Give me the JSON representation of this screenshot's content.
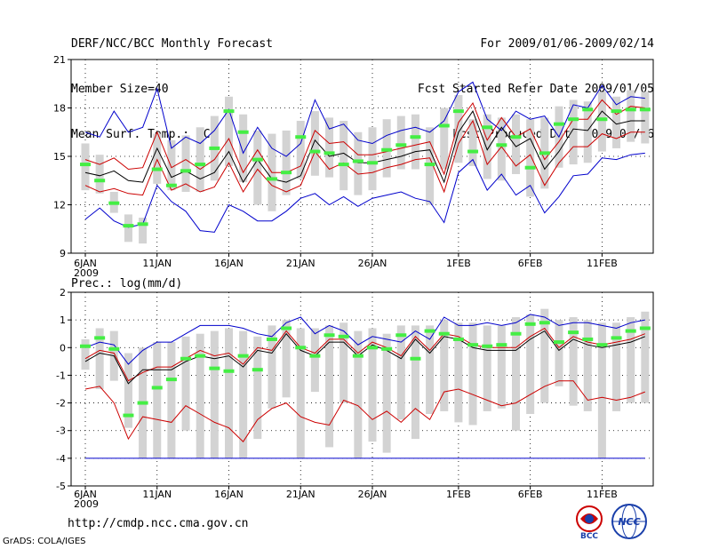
{
  "header": {
    "left": [
      "DERF/NCC/BCC Monthly Forecast",
      "Member Size=40",
      "Mean Surf. Temp.: °C"
    ],
    "right": [
      "For 2009/01/06-2009/02/14",
      "Fcst Started Refer Date 2009/01/05",
      "Fcst Produced Date 2009/01/06"
    ]
  },
  "footer": {
    "url": "http://cmdp.ncc.cma.gov.cn",
    "credit": "GrADS: COLA/IGES"
  },
  "logos": {
    "bcc": "BCC",
    "ncc": "NCC"
  },
  "colors": {
    "grey": "#d3d3d3",
    "green": "#44ee44",
    "blue": "#0000cc",
    "red": "#cc0000",
    "black": "#000000"
  },
  "chart_data": [
    {
      "id": "temp",
      "type": "line",
      "title": "Mean Surf. Temp.: °C",
      "ylim": [
        9,
        21
      ],
      "yticks": [
        9,
        12,
        15,
        18,
        21
      ],
      "x": [
        1,
        2,
        3,
        4,
        5,
        6,
        7,
        8,
        9,
        10,
        11,
        12,
        13,
        14,
        15,
        16,
        17,
        18,
        19,
        20,
        21,
        22,
        23,
        24,
        25,
        26,
        27,
        28,
        29,
        30,
        31,
        32,
        33,
        34,
        35,
        36,
        37,
        38,
        39,
        40
      ],
      "xticks": [
        {
          "x": 1,
          "label": "6JAN",
          "sub": "2009"
        },
        {
          "x": 6,
          "label": "11JAN"
        },
        {
          "x": 11,
          "label": "16JAN"
        },
        {
          "x": 16,
          "label": "21JAN"
        },
        {
          "x": 21,
          "label": "26JAN"
        },
        {
          "x": 27,
          "label": "1FEB"
        },
        {
          "x": 32,
          "label": "6FEB"
        },
        {
          "x": 37,
          "label": "11FEB"
        }
      ],
      "series": [
        {
          "name": "max",
          "color": "blue",
          "values": [
            16.5,
            16.2,
            17.8,
            16.5,
            16.8,
            19.2,
            15.5,
            16.2,
            15.8,
            16.6,
            17.9,
            15.2,
            16.8,
            15.5,
            15.0,
            15.8,
            18.5,
            16.7,
            17.0,
            16.0,
            15.8,
            16.3,
            16.6,
            16.8,
            16.5,
            17.2,
            19.0,
            19.6,
            17.3,
            16.6,
            17.8,
            17.3,
            17.5,
            16.2,
            18.2,
            18.0,
            19.4,
            18.2,
            18.7,
            18.6
          ]
        },
        {
          "name": "upper",
          "color": "red",
          "values": [
            14.8,
            14.5,
            14.9,
            14.2,
            14.3,
            16.5,
            14.3,
            14.8,
            14.2,
            14.8,
            16.1,
            14.0,
            15.4,
            14.0,
            14.0,
            14.4,
            16.6,
            15.8,
            15.9,
            15.1,
            15.1,
            15.3,
            15.5,
            15.7,
            15.9,
            13.9,
            17.1,
            18.3,
            16.0,
            17.4,
            16.2,
            16.7,
            14.8,
            15.9,
            17.3,
            17.3,
            18.5,
            17.6,
            18.1,
            18.0
          ]
        },
        {
          "name": "mean",
          "color": "black",
          "values": [
            14.0,
            13.8,
            14.1,
            13.5,
            13.4,
            15.5,
            13.7,
            14.1,
            13.6,
            14.0,
            15.3,
            13.4,
            14.8,
            13.6,
            13.4,
            13.8,
            16.0,
            15.0,
            15.2,
            14.6,
            14.6,
            14.8,
            15.0,
            15.3,
            15.4,
            13.4,
            16.5,
            17.8,
            15.4,
            16.8,
            15.6,
            16.1,
            14.2,
            15.3,
            16.7,
            16.6,
            17.8,
            17.0,
            17.2,
            17.2
          ]
        },
        {
          "name": "lower",
          "color": "red",
          "values": [
            13.2,
            12.8,
            13.0,
            12.7,
            12.6,
            14.8,
            12.9,
            13.3,
            12.8,
            13.1,
            14.6,
            12.8,
            14.2,
            13.2,
            12.8,
            13.2,
            15.3,
            14.2,
            14.6,
            13.9,
            14.0,
            14.3,
            14.5,
            14.8,
            14.9,
            12.8,
            15.8,
            17.2,
            14.5,
            15.6,
            14.4,
            15.1,
            13.2,
            14.6,
            15.6,
            15.6,
            16.4,
            16.1,
            16.5,
            16.5
          ]
        },
        {
          "name": "min",
          "color": "blue",
          "values": [
            11.1,
            11.8,
            11.0,
            10.6,
            10.8,
            13.2,
            12.2,
            11.6,
            10.4,
            10.3,
            12.0,
            11.6,
            11.0,
            11.0,
            11.6,
            12.4,
            12.7,
            12.0,
            12.5,
            11.9,
            12.4,
            12.6,
            12.8,
            12.4,
            12.2,
            10.9,
            14.0,
            14.8,
            12.9,
            13.9,
            12.6,
            13.2,
            11.5,
            12.5,
            13.8,
            13.9,
            14.9,
            14.8,
            15.1,
            15.2
          ]
        }
      ],
      "obs": [
        14.5,
        13.5,
        12.1,
        10.7,
        10.8,
        14.2,
        13.2,
        14.1,
        14.5,
        15.5,
        17.8,
        16.5,
        14.8,
        13.6,
        14.0,
        16.2,
        15.3,
        15.2,
        14.5,
        14.7,
        14.6,
        15.4,
        15.7,
        16.2,
        14.5,
        16.9,
        17.8,
        15.3,
        16.8,
        15.7,
        16.2,
        14.3,
        15.2,
        17.0,
        17.3,
        17.9,
        17.3,
        17.8,
        17.9,
        17.9
      ],
      "box_hi": [
        15.8,
        15.1,
        12.8,
        11.4,
        11.2,
        16.4,
        16.0,
        16.3,
        16.8,
        17.5,
        18.7,
        17.6,
        16.6,
        16.4,
        16.6,
        17.2,
        17.8,
        17.4,
        17.2,
        16.5,
        16.8,
        17.3,
        17.5,
        17.6,
        16.8,
        18.0,
        18.8,
        17.3,
        17.6,
        17.4,
        17.6,
        17.3,
        17.4,
        18.1,
        18.5,
        18.4,
        19.0,
        18.7,
        19.1,
        19.0
      ],
      "box_lo": [
        12.9,
        12.7,
        11.5,
        9.7,
        9.6,
        13.3,
        12.9,
        12.8,
        12.8,
        13.5,
        14.4,
        13.4,
        12.0,
        11.6,
        12.6,
        13.6,
        13.8,
        13.7,
        12.9,
        12.6,
        12.9,
        13.7,
        14.2,
        14.2,
        12.0,
        14.2,
        14.6,
        14.4,
        13.6,
        13.5,
        13.9,
        12.5,
        13.0,
        14.3,
        14.5,
        14.6,
        15.3,
        15.5,
        15.9,
        15.8
      ]
    },
    {
      "id": "prec",
      "type": "line",
      "title": "Prec.: log(mm/d)",
      "ylim": [
        -5,
        2
      ],
      "yticks": [
        -5,
        -4,
        -3,
        -2,
        -1,
        0,
        1,
        2
      ],
      "x": [
        1,
        2,
        3,
        4,
        5,
        6,
        7,
        8,
        9,
        10,
        11,
        12,
        13,
        14,
        15,
        16,
        17,
        18,
        19,
        20,
        21,
        22,
        23,
        24,
        25,
        26,
        27,
        28,
        29,
        30,
        31,
        32,
        33,
        34,
        35,
        36,
        37,
        38,
        39,
        40
      ],
      "xticks": [
        {
          "x": 1,
          "label": "6JAN",
          "sub": "2009"
        },
        {
          "x": 6,
          "label": "11JAN"
        },
        {
          "x": 11,
          "label": "16JAN"
        },
        {
          "x": 16,
          "label": "21JAN"
        },
        {
          "x": 21,
          "label": "26JAN"
        },
        {
          "x": 27,
          "label": "1FEB"
        },
        {
          "x": 32,
          "label": "6FEB"
        },
        {
          "x": 37,
          "label": "11FEB"
        }
      ],
      "series": [
        {
          "name": "max",
          "color": "blue",
          "values": [
            0.0,
            0.2,
            0.1,
            -0.6,
            -0.1,
            0.2,
            0.2,
            0.5,
            0.8,
            0.8,
            0.8,
            0.7,
            0.5,
            0.4,
            0.9,
            1.1,
            0.5,
            0.8,
            0.6,
            0.1,
            0.4,
            0.3,
            0.2,
            0.6,
            0.3,
            1.1,
            0.8,
            0.8,
            0.9,
            0.8,
            0.9,
            1.2,
            1.1,
            0.8,
            0.9,
            0.9,
            0.8,
            0.7,
            0.9,
            1.0
          ]
        },
        {
          "name": "upper",
          "color": "red",
          "values": [
            -0.4,
            -0.1,
            -0.2,
            -1.2,
            -0.9,
            -0.7,
            -0.7,
            -0.4,
            -0.1,
            -0.3,
            -0.2,
            -0.6,
            0.0,
            -0.1,
            0.6,
            0.0,
            -0.2,
            0.3,
            0.3,
            -0.2,
            0.2,
            0.0,
            -0.3,
            0.4,
            -0.1,
            0.5,
            0.4,
            0.1,
            0.0,
            0.0,
            0.0,
            0.4,
            0.7,
            0.0,
            0.4,
            0.2,
            0.1,
            0.2,
            0.3,
            0.5
          ]
        },
        {
          "name": "mean",
          "color": "black",
          "values": [
            -0.5,
            -0.2,
            -0.3,
            -1.3,
            -0.8,
            -0.8,
            -0.8,
            -0.5,
            -0.3,
            -0.4,
            -0.3,
            -0.7,
            -0.1,
            -0.2,
            0.5,
            -0.1,
            -0.3,
            0.2,
            0.2,
            -0.3,
            0.1,
            -0.1,
            -0.4,
            0.3,
            -0.2,
            0.4,
            0.3,
            0.0,
            -0.1,
            -0.1,
            -0.1,
            0.3,
            0.6,
            -0.1,
            0.3,
            0.1,
            0.0,
            0.1,
            0.2,
            0.4
          ]
        },
        {
          "name": "lower",
          "color": "red",
          "values": [
            -1.5,
            -1.4,
            -2.0,
            -3.3,
            -2.5,
            -2.6,
            -2.7,
            -2.1,
            -2.4,
            -2.7,
            -2.9,
            -3.4,
            -2.6,
            -2.2,
            -2.0,
            -2.5,
            -2.7,
            -2.8,
            -1.9,
            -2.1,
            -2.6,
            -2.3,
            -2.7,
            -2.2,
            -2.6,
            -1.6,
            -1.5,
            -1.7,
            -1.9,
            -2.1,
            -2.0,
            -1.7,
            -1.4,
            -1.2,
            -1.2,
            -1.9,
            -1.8,
            -1.9,
            -1.8,
            -1.6
          ]
        },
        {
          "name": "min",
          "color": "blue",
          "values": [
            -4,
            -4,
            -4,
            -4,
            -4,
            -4,
            -4,
            -4,
            -4,
            -4,
            -4,
            -4,
            -4,
            -4,
            -4,
            -4,
            -4,
            -4,
            -4,
            -4,
            -4,
            -4,
            -4,
            -4,
            -4,
            -4,
            -4,
            -4,
            -4,
            -4,
            -4,
            -4,
            -4,
            -4,
            -4,
            -4,
            -4,
            -4,
            -4,
            -4
          ]
        }
      ],
      "obs": [
        0.05,
        0.35,
        -0.05,
        -2.45,
        -2.0,
        -1.45,
        -1.15,
        -0.4,
        -0.3,
        -0.75,
        -0.85,
        -0.3,
        -0.8,
        0.3,
        0.7,
        0.0,
        -0.3,
        0.45,
        0.4,
        -0.3,
        0.0,
        -0.05,
        0.45,
        -0.4,
        0.6,
        0.5,
        0.3,
        0.1,
        0.05,
        0.1,
        0.5,
        0.85,
        0.9,
        0.2,
        0.55,
        0.3,
        0.1,
        0.35,
        0.6,
        0.7
      ],
      "box_hi": [
        0.3,
        0.7,
        0.6,
        -0.2,
        0.0,
        0.2,
        0.2,
        0.4,
        0.5,
        0.6,
        0.7,
        0.6,
        0.4,
        0.8,
        1.0,
        0.7,
        0.7,
        0.8,
        0.9,
        0.6,
        0.7,
        0.5,
        0.8,
        0.8,
        0.8,
        1.0,
        0.9,
        0.9,
        0.8,
        0.8,
        1.1,
        1.2,
        1.4,
        1.0,
        1.1,
        1.0,
        0.9,
        0.9,
        1.1,
        1.3
      ],
      "box_lo": [
        -0.8,
        -1.5,
        -1.2,
        -2.9,
        -4.0,
        -4.0,
        -4.0,
        -3.0,
        -4.0,
        -4.0,
        -4.0,
        -4.0,
        -3.3,
        -2.2,
        -1.8,
        -4.0,
        -1.6,
        -3.6,
        -2.0,
        -4.0,
        -3.4,
        -3.8,
        -2.6,
        -3.3,
        -2.4,
        -2.3,
        -2.7,
        -2.8,
        -2.3,
        -2.2,
        -3.0,
        -2.4,
        -2.0,
        -1.4,
        -2.1,
        -2.3,
        -4.0,
        -2.3,
        -2.0,
        -2.0
      ]
    }
  ]
}
